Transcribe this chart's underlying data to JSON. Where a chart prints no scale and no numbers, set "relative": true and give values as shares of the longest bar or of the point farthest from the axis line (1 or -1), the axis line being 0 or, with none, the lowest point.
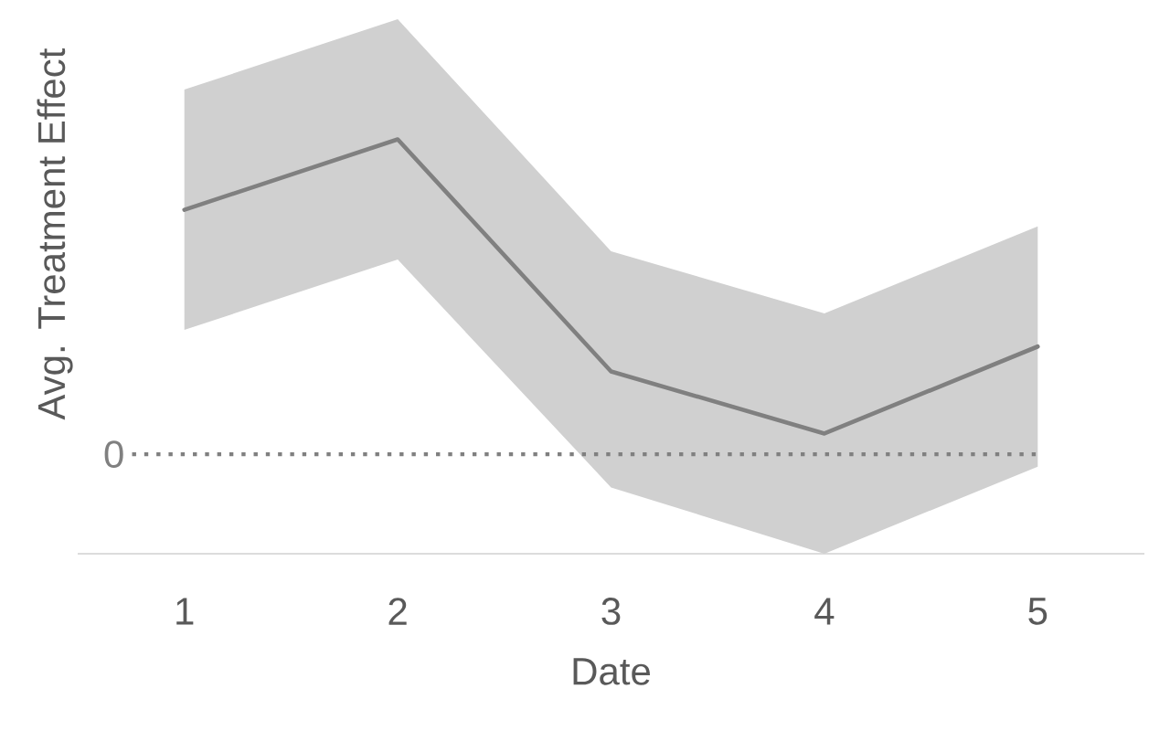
{
  "chart_data": {
    "type": "line",
    "xlabel": "Date",
    "ylabel": "Avg. Treatment Effect",
    "categories": [
      "1",
      "2",
      "3",
      "4",
      "5"
    ],
    "relative": true,
    "series": [
      {
        "color": "#808080",
        "values": [
          0.83,
          1.0,
          0.44,
          0.29,
          0.5
        ],
        "lower": [
          0.54,
          0.71,
          0.16,
          0.0,
          0.21
        ],
        "upper": [
          1.12,
          1.29,
          0.73,
          0.58,
          0.79
        ]
      }
    ],
    "ref_lines": [
      {
        "axis": "y",
        "value": 0.24,
        "label": "0",
        "line_style": "dotted",
        "color": "#808080"
      }
    ]
  }
}
